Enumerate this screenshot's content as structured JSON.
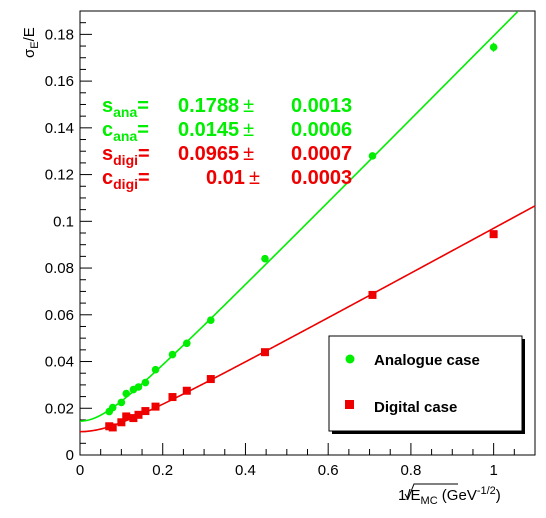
{
  "chart_data": {
    "type": "scatter",
    "xlabel": {
      "prefix": "1/",
      "sym": "E",
      "sub": "MC",
      "unit_open": " (GeV",
      "unit_exp": "-1/2",
      "unit_close": ")"
    },
    "ylabel": {
      "sym": "σ",
      "sub": "E",
      "tail": "/E"
    },
    "xlim": [
      0,
      1.1
    ],
    "ylim": [
      0,
      0.19
    ],
    "x_ticks": [
      "0",
      "0.2",
      "0.4",
      "0.6",
      "0.8",
      "1"
    ],
    "y_ticks": [
      "0",
      "0.02",
      "0.04",
      "0.06",
      "0.08",
      "0.1",
      "0.12",
      "0.14",
      "0.16",
      "0.18"
    ],
    "fit_results": [
      {
        "sym": "s",
        "sub": "ana",
        "eq": "=",
        "value": "0.1788",
        "pm": "±",
        "error": "0.0013",
        "color": "#00ee00"
      },
      {
        "sym": "c",
        "sub": "ana",
        "eq": "=",
        "value": "0.0145",
        "pm": "±",
        "error": "0.0006",
        "color": "#00ee00"
      },
      {
        "sym": "s",
        "sub": "digi",
        "eq": "=",
        "value": "0.0965",
        "pm": "±",
        "error": "0.0007",
        "color": "#ee0000"
      },
      {
        "sym": "c",
        "sub": "digi",
        "eq": "=",
        "value": "0.01",
        "pm": "±",
        "error": "0.0003",
        "color": "#ee0000"
      }
    ],
    "legend": {
      "position": "bottom-right",
      "entries": [
        "Analogue case",
        "Digital case"
      ]
    },
    "series": [
      {
        "name": "Analogue case",
        "marker": "circle",
        "color": "#00ee00",
        "x": [
          0.0707,
          0.0791,
          0.1,
          0.1118,
          0.1291,
          0.1414,
          0.1581,
          0.1826,
          0.2236,
          0.2582,
          0.3162,
          0.4472,
          0.7071,
          1.0
        ],
        "y": [
          0.0186,
          0.0203,
          0.0225,
          0.0263,
          0.028,
          0.0291,
          0.031,
          0.0365,
          0.043,
          0.0478,
          0.0577,
          0.084,
          0.128,
          0.1745
        ],
        "yerr": [
          0.0008,
          0.0008,
          0.0008,
          0.0008,
          0.0008,
          0.0008,
          0.0008,
          0.0008,
          0.0008,
          0.0008,
          0.0008,
          0.001,
          0.0012,
          0.002
        ]
      },
      {
        "name": "Digital case",
        "marker": "square",
        "color": "#ee0000",
        "x": [
          0.0707,
          0.0791,
          0.1,
          0.1118,
          0.1291,
          0.1414,
          0.1581,
          0.1826,
          0.2236,
          0.2582,
          0.3162,
          0.4472,
          0.7071,
          1.0
        ],
        "y": [
          0.0123,
          0.0118,
          0.014,
          0.0165,
          0.0158,
          0.0172,
          0.0188,
          0.0207,
          0.0248,
          0.0275,
          0.0325,
          0.044,
          0.0685,
          0.0945
        ],
        "yerr": [
          0.0005,
          0.0005,
          0.0005,
          0.0005,
          0.0005,
          0.0005,
          0.0005,
          0.0005,
          0.0005,
          0.0005,
          0.0005,
          0.0006,
          0.0008,
          0.001
        ]
      }
    ],
    "fits": [
      {
        "series": "Analogue case",
        "form": "sqrt(s^2 x^2 + c^2)",
        "s": 0.1788,
        "c": 0.0145,
        "color": "#00ee00"
      },
      {
        "series": "Digital case",
        "form": "sqrt(s^2 x^2 + c^2)",
        "s": 0.0965,
        "c": 0.01,
        "color": "#ee0000"
      }
    ]
  }
}
